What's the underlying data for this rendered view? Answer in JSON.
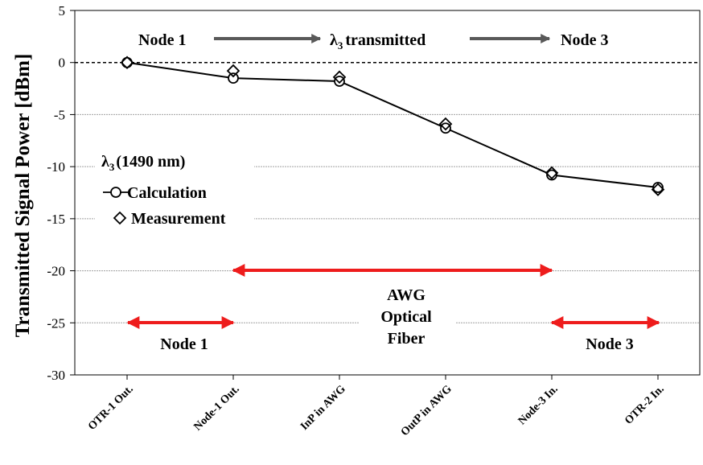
{
  "chart_data": {
    "type": "line",
    "ylabel": "Transmitted Signal Power [dBm]",
    "ylim": [
      -30,
      5
    ],
    "yticks": [
      5,
      0,
      -5,
      -10,
      -15,
      -20,
      -25,
      -30
    ],
    "categories": [
      "OTR-1 Out.",
      "Node-1 Out.",
      "InP in AWG",
      "OutP in AWG",
      "Node-3 In.",
      "OTR-2 In."
    ],
    "grid": "horizontal",
    "series": [
      {
        "name": "Calculation",
        "marker": "circle",
        "values": [
          0,
          -1.5,
          -1.8,
          -6.3,
          -10.8,
          -12.0
        ]
      },
      {
        "name": "Measurement",
        "marker": "diamond",
        "values": [
          0,
          -0.8,
          -1.4,
          -5.9,
          -10.6,
          -12.2
        ]
      }
    ],
    "legend": {
      "title_symbol": "λ",
      "title_sub": "3",
      "title_rest": "(1490 nm)",
      "placement": "left"
    },
    "annotations": {
      "top_left": "Node 1",
      "top_mid_symbol": "λ",
      "top_mid_sub": "3",
      "top_mid_rest": "transmitted",
      "top_right": "Node 3",
      "span_node1": "Node 1",
      "span_mid": [
        "AWG",
        "Optical",
        "Fiber"
      ],
      "span_node3": "Node 3"
    },
    "colors": {
      "series": "#000000",
      "grid": "#a0a0a0",
      "arrow_red": "#ee1c1c",
      "arrow_gray": "#595959"
    }
  }
}
